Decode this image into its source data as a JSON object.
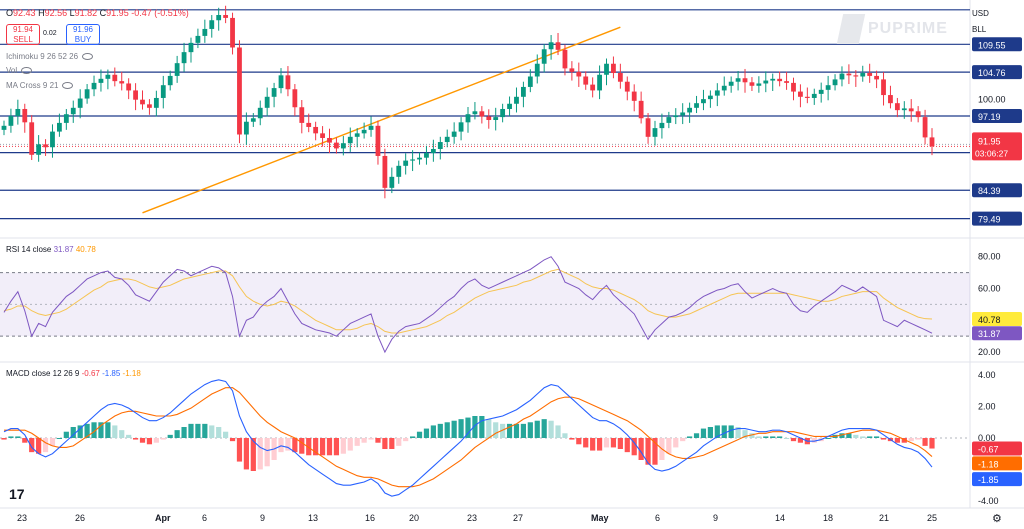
{
  "header": {
    "ohlc": [
      {
        "k": "O",
        "v": "92.43"
      },
      {
        "k": "H",
        "v": "92.56"
      },
      {
        "k": "L",
        "v": "91.82"
      },
      {
        "k": "C",
        "v": "91.95"
      }
    ],
    "change": "-0.47 (-0.51%)",
    "sell_price": "91.94",
    "sell_label": "SELL",
    "spread": "0.02",
    "buy_price": "91.96",
    "buy_label": "BUY",
    "indicators": [
      "Ichimoku 9 26 52 26",
      "Vol",
      "MA Cross 9 21"
    ],
    "currency": "USD",
    "unit": "BLL",
    "logo": "PUPRIME"
  },
  "rsi_label": {
    "name": "RSI 14 close",
    "v1": "31.87",
    "v2": "40.78"
  },
  "macd_label": {
    "name": "MACD close 12 26 9",
    "v1": "-0.67",
    "v2": "-1.85",
    "v3": "-1.18"
  },
  "colors": {
    "up": "#089981",
    "down": "#f23645",
    "level": "#1e3a8a",
    "trend": "#ff9800",
    "rsi": "#7e57c2",
    "macd": "#2962ff",
    "signal": "#ff6d00"
  },
  "icons": [
    "eye-icon",
    "tradingview-logo-icon",
    "gear-icon"
  ],
  "chart_data": [
    {
      "type": "candlestick",
      "title": "",
      "x_labels": [
        "23",
        "26",
        "Apr",
        "6",
        "9",
        "13",
        "16",
        "20",
        "23",
        "27",
        "May",
        "6",
        "9",
        "14",
        "18",
        "21",
        "25"
      ],
      "ylim": [
        76.5,
        116.5
      ],
      "y_ticks": [
        "100.00"
      ],
      "horizontal_levels": [
        115.5,
        109.55,
        104.76,
        97.19,
        91.95,
        90.88,
        84.39,
        79.49
      ],
      "level_labels": [
        "109.55",
        "104.76",
        "97.19",
        "90.88",
        "84.39",
        "79.49"
      ],
      "current_price": "91.95",
      "countdown": "03:06:27",
      "trendline": {
        "from": [
          20,
          80.5
        ],
        "to": [
          89,
          112.5
        ]
      },
      "close": [
        95.5,
        97.2,
        98.4,
        96.1,
        90.5,
        92.3,
        91.8,
        94.5,
        96.0,
        97.5,
        98.6,
        100.2,
        101.8,
        102.9,
        103.6,
        104.3,
        103.2,
        102.8,
        101.6,
        100.0,
        99.2,
        98.6,
        100.3,
        102.5,
        104.1,
        106.3,
        108.2,
        109.8,
        111.0,
        112.2,
        113.7,
        114.6,
        114.1,
        109.0,
        94.0,
        96.2,
        96.8,
        98.6,
        100.5,
        102.0,
        104.2,
        101.8,
        98.7,
        96.0,
        95.3,
        94.2,
        93.4,
        92.6,
        91.6,
        92.5,
        93.6,
        94.2,
        94.8,
        95.5,
        90.3,
        84.8,
        86.7,
        88.6,
        89.5,
        89.7,
        90.0,
        90.8,
        91.5,
        92.7,
        93.6,
        94.5,
        96.1,
        97.5,
        98.0,
        97.1,
        96.5,
        97.0,
        98.4,
        99.3,
        100.5,
        102.2,
        104.0,
        106.2,
        108.7,
        109.9,
        108.6,
        105.4,
        104.8,
        104.0,
        102.6,
        101.6,
        104.3,
        106.2,
        104.6,
        103.1,
        101.4,
        99.8,
        96.8,
        93.6,
        95.1,
        96.0,
        97.0,
        97.3,
        97.8,
        98.6,
        99.4,
        100.1,
        100.7,
        101.6,
        102.4,
        103.1,
        103.7,
        103.0,
        102.4,
        102.8,
        103.3,
        103.6,
        103.2,
        102.9,
        101.4,
        100.5,
        100.3,
        101.0,
        101.7,
        102.5,
        103.5,
        104.5,
        104.2,
        104.0,
        104.6,
        104.1,
        103.5,
        100.8,
        99.4,
        98.2,
        98.5,
        98.0,
        97.0,
        93.5,
        91.95
      ],
      "open": [
        94.8,
        95.5,
        97.2,
        98.4,
        96.1,
        90.5,
        92.3,
        91.8,
        94.5,
        96.0,
        97.5,
        98.6,
        100.2,
        101.8,
        102.9,
        103.6,
        104.3,
        103.2,
        102.8,
        101.6,
        100.0,
        99.2,
        98.6,
        100.3,
        102.5,
        104.1,
        106.3,
        108.2,
        109.8,
        111.0,
        112.2,
        113.7,
        114.6,
        114.1,
        109.0,
        94.0,
        96.2,
        96.8,
        98.6,
        100.5,
        102.0,
        104.2,
        101.8,
        98.7,
        96.0,
        95.3,
        94.2,
        93.4,
        92.6,
        91.6,
        92.5,
        93.6,
        94.2,
        94.8,
        95.5,
        90.3,
        84.8,
        86.7,
        88.6,
        89.5,
        89.7,
        90.0,
        90.8,
        91.5,
        92.7,
        93.6,
        94.5,
        96.1,
        97.5,
        98.0,
        97.1,
        96.5,
        97.0,
        98.4,
        99.3,
        100.5,
        102.2,
        104.0,
        106.2,
        108.7,
        109.9,
        108.6,
        105.4,
        104.8,
        104.0,
        102.6,
        101.6,
        104.3,
        106.2,
        104.6,
        103.1,
        101.4,
        99.8,
        96.8,
        93.6,
        95.1,
        96.0,
        97.0,
        97.3,
        97.8,
        98.6,
        99.4,
        100.1,
        100.7,
        101.6,
        102.4,
        103.1,
        103.7,
        103.0,
        102.4,
        102.8,
        103.3,
        103.6,
        103.2,
        102.9,
        101.4,
        100.5,
        100.3,
        101.0,
        101.7,
        102.5,
        103.5,
        104.5,
        104.2,
        104.0,
        104.6,
        104.1,
        103.5,
        100.8,
        99.4,
        98.2,
        98.5,
        98.0,
        97.0,
        93.5
      ]
    },
    {
      "type": "line",
      "title": "RSI 14 close",
      "ylim": [
        15,
        88
      ],
      "y_ticks": [
        "80.00",
        "60.00",
        "20.00"
      ],
      "band": [
        30,
        70
      ],
      "midline": 50,
      "series": [
        {
          "name": "RSI",
          "values": [
            45,
            52,
            58,
            46,
            30,
            38,
            36,
            45,
            50,
            55,
            58,
            62,
            66,
            68,
            70,
            71,
            67,
            66,
            62,
            56,
            54,
            52,
            58,
            64,
            68,
            72,
            71,
            68,
            70,
            72,
            74,
            73,
            70,
            55,
            30,
            40,
            42,
            48,
            52,
            55,
            60,
            52,
            44,
            38,
            36,
            34,
            33,
            32,
            30,
            34,
            38,
            40,
            42,
            44,
            30,
            20,
            28,
            33,
            36,
            37,
            38,
            41,
            44,
            48,
            52,
            55,
            60,
            64,
            66,
            62,
            60,
            62,
            64,
            66,
            68,
            70,
            72,
            75,
            78,
            80,
            74,
            64,
            62,
            60,
            56,
            53,
            58,
            62,
            56,
            52,
            48,
            44,
            36,
            28,
            34,
            38,
            42,
            43,
            45,
            48,
            52,
            55,
            57,
            59,
            60,
            62,
            63,
            58,
            54,
            56,
            58,
            60,
            58,
            57,
            50,
            46,
            45,
            49,
            52,
            55,
            58,
            62,
            60,
            58,
            61,
            58,
            55,
            40,
            38,
            36,
            40,
            38,
            36,
            34,
            31.87
          ]
        },
        {
          "name": "MA",
          "values": [
            46,
            47,
            49,
            49,
            46,
            44,
            43,
            44,
            45,
            47,
            50,
            53,
            56,
            59,
            61,
            64,
            65,
            66,
            66,
            65,
            63,
            61,
            60,
            61,
            62,
            64,
            66,
            67,
            68,
            69,
            70,
            71,
            71,
            68,
            61,
            55,
            52,
            50,
            49,
            50,
            52,
            51,
            49,
            46,
            43,
            40,
            38,
            36,
            34,
            34,
            34,
            35,
            37,
            38,
            36,
            33,
            32,
            32,
            33,
            34,
            35,
            36,
            38,
            40,
            43,
            45,
            48,
            51,
            54,
            56,
            58,
            59,
            60,
            61,
            62,
            64,
            65,
            67,
            69,
            71,
            72,
            70,
            68,
            66,
            63,
            61,
            60,
            60,
            59,
            57,
            55,
            53,
            50,
            46,
            44,
            43,
            42,
            42,
            43,
            44,
            46,
            48,
            50,
            52,
            54,
            56,
            57,
            57,
            57,
            57,
            57,
            57,
            57,
            57,
            56,
            55,
            54,
            53,
            52,
            52,
            53,
            55,
            56,
            57,
            58,
            58,
            58,
            54,
            51,
            48,
            46,
            44,
            42,
            41,
            40.78
          ]
        }
      ]
    },
    {
      "type": "bar",
      "title": "MACD close 12 26 9",
      "ylim": [
        -4.2,
        4.2
      ],
      "y_ticks": [
        "4.00",
        "2.00",
        "0.00",
        "-4.00"
      ],
      "series": [
        {
          "name": "MACD",
          "values": [
            0.4,
            0.6,
            0.6,
            0.2,
            -0.6,
            -1.0,
            -1.2,
            -1.0,
            -0.6,
            -0.2,
            0.2,
            0.6,
            1.0,
            1.4,
            1.8,
            2.1,
            2.2,
            2.1,
            1.9,
            1.6,
            1.3,
            1.1,
            1.1,
            1.3,
            1.6,
            2.0,
            2.4,
            2.8,
            3.1,
            3.4,
            3.6,
            3.7,
            3.6,
            3.0,
            1.4,
            0.4,
            -0.2,
            -0.6,
            -0.8,
            -0.7,
            -0.5,
            -0.6,
            -0.9,
            -1.3,
            -1.7,
            -2.0,
            -2.3,
            -2.6,
            -2.9,
            -3.0,
            -3.0,
            -2.9,
            -2.8,
            -2.6,
            -2.9,
            -3.5,
            -3.7,
            -3.6,
            -3.3,
            -3.0,
            -2.6,
            -2.2,
            -1.8,
            -1.4,
            -1.0,
            -0.6,
            -0.2,
            0.3,
            0.8,
            1.1,
            1.2,
            1.3,
            1.4,
            1.6,
            1.8,
            2.1,
            2.4,
            2.8,
            3.2,
            3.4,
            3.3,
            2.9,
            2.5,
            2.1,
            1.7,
            1.3,
            1.1,
            1.1,
            0.9,
            0.6,
            0.2,
            -0.3,
            -0.9,
            -1.6,
            -2.0,
            -2.1,
            -2.0,
            -1.8,
            -1.5,
            -1.2,
            -0.9,
            -0.5,
            -0.2,
            0.1,
            0.3,
            0.5,
            0.6,
            0.6,
            0.5,
            0.4,
            0.4,
            0.5,
            0.5,
            0.4,
            0.2,
            0.0,
            -0.2,
            -0.2,
            -0.1,
            0.1,
            0.3,
            0.5,
            0.6,
            0.6,
            0.6,
            0.6,
            0.5,
            0.2,
            -0.1,
            -0.4,
            -0.6,
            -0.7,
            -0.9,
            -1.3,
            -1.85
          ]
        },
        {
          "name": "Signal",
          "values": [
            0.5,
            0.5,
            0.5,
            0.5,
            0.3,
            0.0,
            -0.3,
            -0.5,
            -0.6,
            -0.6,
            -0.5,
            -0.2,
            0.1,
            0.4,
            0.8,
            1.1,
            1.4,
            1.6,
            1.7,
            1.7,
            1.6,
            1.5,
            1.4,
            1.4,
            1.4,
            1.5,
            1.7,
            1.9,
            2.2,
            2.5,
            2.8,
            3.0,
            3.2,
            3.2,
            2.9,
            2.4,
            1.9,
            1.4,
            1.0,
            0.7,
            0.4,
            0.2,
            0.0,
            -0.3,
            -0.6,
            -0.9,
            -1.2,
            -1.5,
            -1.8,
            -2.0,
            -2.2,
            -2.4,
            -2.5,
            -2.5,
            -2.6,
            -2.8,
            -3.0,
            -3.1,
            -3.1,
            -3.1,
            -3.0,
            -2.8,
            -2.6,
            -2.3,
            -2.0,
            -1.7,
            -1.4,
            -1.0,
            -0.6,
            -0.3,
            0.0,
            0.3,
            0.5,
            0.7,
            0.9,
            1.2,
            1.4,
            1.7,
            2.0,
            2.3,
            2.5,
            2.6,
            2.6,
            2.5,
            2.3,
            2.1,
            1.9,
            1.7,
            1.5,
            1.3,
            1.1,
            0.8,
            0.5,
            0.1,
            -0.3,
            -0.7,
            -1.0,
            -1.2,
            -1.3,
            -1.3,
            -1.2,
            -1.1,
            -0.9,
            -0.7,
            -0.5,
            -0.3,
            -0.1,
            0.1,
            0.2,
            0.3,
            0.3,
            0.4,
            0.4,
            0.4,
            0.4,
            0.3,
            0.2,
            0.1,
            0.1,
            0.1,
            0.1,
            0.2,
            0.3,
            0.4,
            0.5,
            0.5,
            0.5,
            0.4,
            0.3,
            0.1,
            -0.1,
            -0.3,
            -0.5,
            -0.8,
            -1.18
          ]
        },
        {
          "name": "Histogram",
          "values": [
            -0.1,
            0.1,
            0.1,
            -0.3,
            -0.9,
            -1.0,
            -0.9,
            -0.5,
            0.0,
            0.4,
            0.7,
            0.8,
            0.9,
            1.0,
            1.0,
            1.0,
            0.8,
            0.5,
            0.2,
            -0.1,
            -0.3,
            -0.4,
            -0.3,
            -0.1,
            0.2,
            0.5,
            0.7,
            0.9,
            0.9,
            0.9,
            0.8,
            0.7,
            0.4,
            -0.2,
            -1.5,
            -2.0,
            -2.1,
            -2.0,
            -1.8,
            -1.4,
            -0.9,
            -0.8,
            -0.9,
            -1.0,
            -1.1,
            -1.1,
            -1.1,
            -1.1,
            -1.1,
            -1.0,
            -0.8,
            -0.5,
            -0.3,
            -0.1,
            -0.3,
            -0.7,
            -0.7,
            -0.5,
            -0.2,
            0.1,
            0.4,
            0.6,
            0.8,
            0.9,
            1.0,
            1.1,
            1.2,
            1.3,
            1.4,
            1.4,
            1.2,
            1.0,
            0.9,
            0.9,
            0.9,
            0.9,
            1.0,
            1.1,
            1.2,
            1.1,
            0.8,
            0.3,
            -0.1,
            -0.4,
            -0.6,
            -0.8,
            -0.8,
            -0.6,
            -0.6,
            -0.7,
            -0.9,
            -1.1,
            -1.4,
            -1.7,
            -1.7,
            -1.4,
            -1.0,
            -0.6,
            -0.2,
            0.1,
            0.3,
            0.6,
            0.7,
            0.8,
            0.8,
            0.8,
            0.7,
            0.5,
            0.3,
            0.1,
            0.1,
            0.1,
            0.1,
            0.0,
            -0.2,
            -0.3,
            -0.4,
            -0.3,
            -0.2,
            0.0,
            0.2,
            0.3,
            0.3,
            0.2,
            0.1,
            0.1,
            0.1,
            -0.1,
            -0.2,
            -0.3,
            -0.3,
            -0.2,
            -0.1,
            -0.5,
            -0.67
          ]
        }
      ]
    }
  ]
}
